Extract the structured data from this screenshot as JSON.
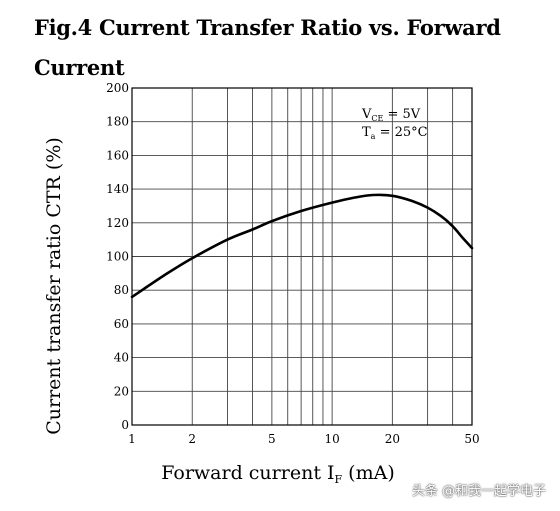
{
  "chart_data": {
    "type": "line",
    "title": "Fig.4 Current Transfer Ratio vs. Forward Current",
    "xlabel": "Forward current I",
    "xlabel_sub": "F",
    "xlabel_unit": " (mA)",
    "ylabel": "Current transfer ratio CTR (%)",
    "xscale": "log",
    "xlim": [
      1,
      50
    ],
    "ylim": [
      0,
      200
    ],
    "x_ticks": [
      1,
      2,
      5,
      10,
      20,
      50
    ],
    "x_tick_labels": [
      "1",
      "2",
      "5",
      "10",
      "20",
      "50"
    ],
    "y_ticks": [
      0,
      20,
      40,
      60,
      80,
      100,
      120,
      140,
      160,
      180,
      200
    ],
    "y_tick_labels": [
      "0",
      "20",
      "40",
      "60",
      "80",
      "100",
      "120",
      "140",
      "160",
      "180",
      "200"
    ],
    "grid": true,
    "annotations": {
      "vce_main": "V",
      "vce_sub": "CE",
      "vce_value": " = 5V",
      "ta_main": "T",
      "ta_sub": "a",
      "ta_value": " = 25°C"
    },
    "series": [
      {
        "x": [
          1,
          1.5,
          2,
          3,
          4,
          5,
          7,
          10,
          13,
          16,
          20,
          25,
          30,
          35,
          40,
          45,
          50
        ],
        "y": [
          76,
          90,
          99,
          110,
          116,
          121,
          127,
          132,
          135,
          136.5,
          136,
          133,
          129,
          124,
          118,
          111,
          105
        ]
      }
    ]
  },
  "watermark": "头条 @和我一起学电子"
}
